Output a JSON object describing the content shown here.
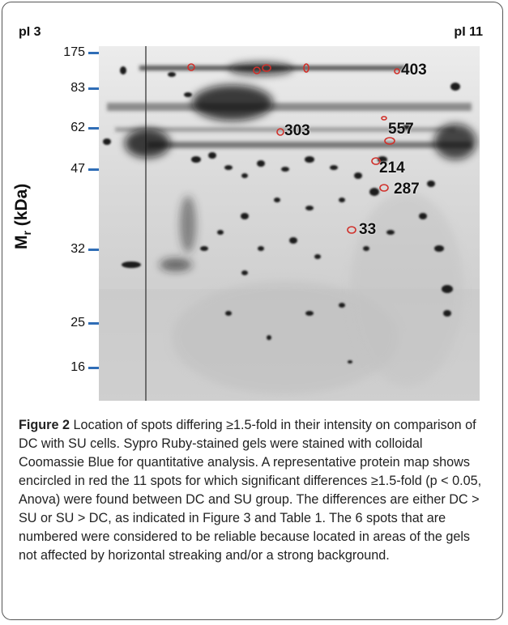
{
  "figure": {
    "pi_left": "pI 3",
    "pi_right": "pI 11",
    "axis_title_main": "M",
    "axis_title_sub": "r",
    "axis_title_unit": " (kDa)",
    "mw_ticks": [
      "175",
      "83",
      "62",
      "47",
      "32",
      "25",
      "16"
    ],
    "spot_labels": [
      "403",
      "557",
      "303",
      "214",
      "287",
      "33"
    ],
    "marker_color": "#2f6db6",
    "circle_color": "#d0302a"
  },
  "caption": {
    "head": "Figure 2",
    "text": " Location of spots differing ≥1.5-fold in their intensity on comparison of DC with SU cells. Sypro Ruby-stained gels were stained with colloidal Coomassie Blue for quantitative analysis. A representative protein map shows encircled in red the 11 spots for which significant differences ≥1.5-fold (p < 0.05, Anova) were found between DC and SU group. The differences are either DC > SU or SU > DC, as indicated in Figure 3 and Table 1. The 6 spots that are numbered were considered to be reliable because located in areas of the gels not affected by horizontal streaking and/or a strong background."
  }
}
